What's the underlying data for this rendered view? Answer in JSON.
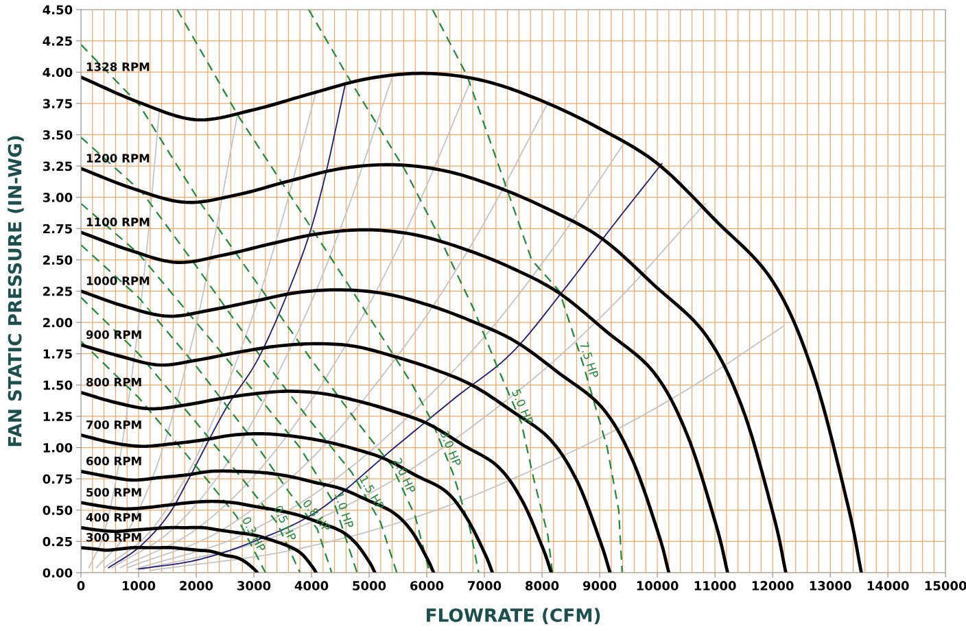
{
  "chart_data": {
    "type": "line",
    "xlabel": "FLOWRATE (CFM)",
    "ylabel": "FAN STATIC PRESSURE (IN-WG)",
    "xlim": [
      0,
      15000
    ],
    "ylim": [
      0,
      4.5
    ],
    "grid": true,
    "legend": false,
    "xticks": [
      0,
      {
        "value": 200,
        "label": null
      },
      {
        "value": 400,
        "label": null
      },
      {
        "value": 600,
        "label": null
      },
      {
        "value": 800,
        "label": null
      },
      1000,
      {
        "value": 1200,
        "label": null
      },
      {
        "value": 1400,
        "label": null
      },
      {
        "value": 1600,
        "label": null
      },
      {
        "value": 1800,
        "label": null
      },
      2000,
      {
        "value": 2200,
        "label": null
      },
      {
        "value": 2400,
        "label": null
      },
      {
        "value": 2600,
        "label": null
      },
      {
        "value": 2800,
        "label": null
      },
      3000,
      {
        "value": 3200,
        "label": null
      },
      {
        "value": 3400,
        "label": null
      },
      {
        "value": 3600,
        "label": null
      },
      {
        "value": 3800,
        "label": null
      },
      4000,
      {
        "value": 4200,
        "label": null
      },
      {
        "value": 4400,
        "label": null
      },
      {
        "value": 4600,
        "label": null
      },
      {
        "value": 4800,
        "label": null
      },
      5000,
      {
        "value": 5200,
        "label": null
      },
      {
        "value": 5400,
        "label": null
      },
      {
        "value": 5600,
        "label": null
      },
      {
        "value": 5800,
        "label": null
      },
      6000,
      {
        "value": 6200,
        "label": null
      },
      {
        "value": 6400,
        "label": null
      },
      {
        "value": 6600,
        "label": null
      },
      {
        "value": 6800,
        "label": null
      },
      7000,
      {
        "value": 7200,
        "label": null
      },
      {
        "value": 7400,
        "label": null
      },
      {
        "value": 7600,
        "label": null
      },
      {
        "value": 7800,
        "label": null
      },
      8000,
      {
        "value": 8200,
        "label": null
      },
      {
        "value": 8400,
        "label": null
      },
      {
        "value": 8600,
        "label": null
      },
      {
        "value": 8800,
        "label": null
      },
      9000,
      {
        "value": 9200,
        "label": null
      },
      {
        "value": 9400,
        "label": null
      },
      {
        "value": 9600,
        "label": null
      },
      {
        "value": 9800,
        "label": null
      },
      10000,
      {
        "value": 10200,
        "label": null
      },
      {
        "value": 10400,
        "label": null
      },
      {
        "value": 10600,
        "label": null
      },
      {
        "value": 10800,
        "label": null
      },
      11000,
      {
        "value": 11200,
        "label": null
      },
      {
        "value": 11400,
        "label": null
      },
      {
        "value": 11600,
        "label": null
      },
      {
        "value": 11800,
        "label": null
      },
      12000,
      {
        "value": 12200,
        "label": null
      },
      {
        "value": 12400,
        "label": null
      },
      {
        "value": 12600,
        "label": null
      },
      {
        "value": 12800,
        "label": null
      },
      13000,
      {
        "value": 13200,
        "label": null
      },
      {
        "value": 13400,
        "label": null
      },
      {
        "value": 13600,
        "label": null
      },
      {
        "value": 13800,
        "label": null
      },
      14000,
      {
        "value": 14200,
        "label": null
      },
      {
        "value": 14400,
        "label": null
      },
      {
        "value": 14600,
        "label": null
      },
      {
        "value": 14800,
        "label": null
      },
      15000
    ],
    "yticks": [
      {
        "value": 0,
        "label": "0.00"
      },
      {
        "value": 0.25,
        "label": "0.25"
      },
      {
        "value": 0.5,
        "label": "0.50"
      },
      {
        "value": 0.75,
        "label": "0.75"
      },
      {
        "value": 1.0,
        "label": "1.00"
      },
      {
        "value": 1.25,
        "label": "1.25"
      },
      {
        "value": 1.5,
        "label": "1.50"
      },
      {
        "value": 1.75,
        "label": "1.75"
      },
      {
        "value": 2.0,
        "label": "2.00"
      },
      {
        "value": 2.25,
        "label": "2.25"
      },
      {
        "value": 2.5,
        "label": "2.50"
      },
      {
        "value": 2.75,
        "label": "2.75"
      },
      {
        "value": 3.0,
        "label": "3.00"
      },
      {
        "value": 3.25,
        "label": "3.25"
      },
      {
        "value": 3.5,
        "label": "3.50"
      },
      {
        "value": 3.75,
        "label": "3.75"
      },
      {
        "value": 4.0,
        "label": "4.00"
      },
      {
        "value": 4.25,
        "label": "4.25"
      },
      {
        "value": 4.5,
        "label": "4.50"
      }
    ],
    "annotations": [
      {
        "text": "0.3 HP",
        "x": 2900,
        "y": 0.27
      },
      {
        "text": "0.5 HP",
        "x": 3440,
        "y": 0.36
      },
      {
        "text": "0.8 HP",
        "x": 4000,
        "y": 0.41
      },
      {
        "text": "1.0 HP",
        "x": 4460,
        "y": 0.47
      },
      {
        "text": "1.5 HP",
        "x": 4950,
        "y": 0.6
      },
      {
        "text": "2.0 HP",
        "x": 5510,
        "y": 0.74
      },
      {
        "text": "3.0 HP",
        "x": 6310,
        "y": 0.96
      },
      {
        "text": "5.0 HP",
        "x": 7560,
        "y": 1.29
      },
      {
        "text": "7.5 HP",
        "x": 8710,
        "y": 1.67
      }
    ],
    "series": [
      {
        "color": "#c4c4c4",
        "line_style": "solid",
        "x": [
          140,
          410,
          680,
          950,
          1160,
          1360
        ],
        "values": [
          0.04,
          0.33,
          0.93,
          1.81,
          2.67,
          3.7
        ]
      },
      {
        "color": "#c4c4c4",
        "line_style": "solid",
        "x": [
          270,
          810,
          1360,
          1900,
          2300,
          2710
        ],
        "values": [
          0.04,
          0.33,
          0.91,
          1.79,
          2.64,
          3.65
        ]
      },
      {
        "color": "#c4c4c4",
        "line_style": "solid",
        "x": [
          410,
          1220,
          2040,
          2850,
          3460,
          4070
        ],
        "values": [
          0.04,
          0.34,
          0.96,
          1.88,
          2.77,
          3.83
        ]
      },
      {
        "color": "#c4c4c4",
        "line_style": "solid",
        "x": [
          540,
          1620,
          2700,
          3780,
          4590,
          5400
        ],
        "values": [
          0.04,
          0.36,
          0.99,
          1.94,
          2.86,
          3.96
        ]
      },
      {
        "color": "#c4c4c4",
        "line_style": "solid",
        "x": [
          680,
          2040,
          3400,
          4750,
          5770,
          6790
        ],
        "values": [
          0.04,
          0.36,
          0.99,
          1.94,
          2.86,
          3.96
        ]
      },
      {
        "color": "#c4c4c4",
        "line_style": "solid",
        "x": [
          810,
          2440,
          4060,
          5680,
          6900,
          8120
        ],
        "values": [
          0.04,
          0.34,
          0.94,
          1.85,
          2.72,
          3.77
        ]
      },
      {
        "color": "#c4c4c4",
        "line_style": "solid",
        "x": [
          950,
          2840,
          4730,
          6620,
          8030,
          9450
        ],
        "values": [
          0.03,
          0.31,
          0.86,
          1.69,
          2.49,
          3.45
        ]
      },
      {
        "color": "#c4c4c4",
        "line_style": "solid",
        "x": [
          1080,
          3250,
          5420,
          7580,
          9210,
          10830
        ],
        "values": [
          0.03,
          0.27,
          0.74,
          1.45,
          2.13,
          2.95
        ]
      },
      {
        "color": "#c4c4c4",
        "line_style": "solid",
        "x": [
          1220,
          3660,
          6100,
          8530,
          10360,
          12190
        ],
        "values": [
          0.02,
          0.18,
          0.49,
          0.97,
          1.42,
          1.97
        ]
      },
      {
        "color": "#1c1c78",
        "line_style": "solid",
        "x": [
          480,
          1000,
          1500,
          1870,
          2500,
          3120,
          3810,
          4200,
          4580
        ],
        "values": [
          0.04,
          0.2,
          0.45,
          0.75,
          1.3,
          1.75,
          2.5,
          3.1,
          3.89
        ]
      },
      {
        "color": "#1c1c78",
        "line_style": "solid",
        "x": [
          1000,
          2000,
          3000,
          4130,
          5440,
          6500,
          7460,
          8360,
          9190,
          10080
        ],
        "values": [
          0.03,
          0.1,
          0.25,
          0.5,
          1.0,
          1.4,
          1.75,
          2.25,
          2.75,
          3.27
        ]
      },
      {
        "color": "#1e8a3a",
        "line_style": "dashed",
        "x": [
          0,
          1000,
          2000,
          2700,
          3200
        ],
        "values": [
          1.85,
          1.4,
          0.85,
          0.45,
          0
        ]
      },
      {
        "color": "#1e8a3a",
        "line_style": "dashed",
        "x": [
          0,
          1000,
          2000,
          2800,
          3400,
          3800
        ],
        "values": [
          2.2,
          1.75,
          1.2,
          0.75,
          0.4,
          0
        ]
      },
      {
        "color": "#1e8a3a",
        "line_style": "dashed",
        "x": [
          0,
          1000,
          2000,
          3000,
          3600,
          4100,
          4350
        ],
        "values": [
          2.62,
          2.2,
          1.65,
          1.05,
          0.65,
          0.35,
          0
        ]
      },
      {
        "color": "#1e8a3a",
        "line_style": "dashed",
        "x": [
          0,
          1000,
          2000,
          3000,
          3800,
          4400,
          4790
        ],
        "values": [
          2.95,
          2.55,
          2.0,
          1.45,
          1.0,
          0.55,
          0
        ]
      },
      {
        "color": "#1e8a3a",
        "line_style": "dashed",
        "x": [
          0,
          1060,
          2000,
          3000,
          4000,
          4700,
          5200,
          5480
        ],
        "values": [
          3.48,
          3.04,
          2.45,
          1.8,
          1.2,
          0.8,
          0.4,
          0
        ]
      },
      {
        "color": "#1e8a3a",
        "line_style": "dashed",
        "x": [
          0,
          1010,
          2080,
          3000,
          4000,
          4800,
          5400,
          5800,
          6050
        ],
        "values": [
          4.22,
          3.74,
          2.95,
          2.35,
          1.7,
          1.2,
          0.85,
          0.45,
          0
        ]
      },
      {
        "color": "#1e8a3a",
        "line_style": "dashed",
        "x": [
          1670,
          2730,
          3750,
          4500,
          5200,
          5740,
          6100,
          6450,
          6750,
          6900
        ],
        "values": [
          4.5,
          3.65,
          2.93,
          2.4,
          1.9,
          1.51,
          1.2,
          0.8,
          0.35,
          0
        ]
      },
      {
        "color": "#1e8a3a",
        "line_style": "dashed",
        "x": [
          3950,
          4700,
          5620,
          6200,
          6810,
          7200,
          7640,
          7850,
          8100,
          8180
        ],
        "values": [
          4.5,
          3.91,
          3.22,
          2.7,
          2.11,
          1.67,
          1.2,
          0.76,
          0.3,
          0
        ]
      },
      {
        "color": "#1e8a3a",
        "line_style": "dashed",
        "x": [
          6100,
          6700,
          7250,
          7820,
          8300,
          8710,
          9130,
          9330,
          9390
        ],
        "values": [
          4.5,
          3.97,
          3.25,
          2.5,
          2.25,
          1.67,
          1.0,
          0.5,
          0
        ]
      },
      {
        "name": "1328 RPM",
        "color": "#000000",
        "line_style": "solid",
        "x": [
          0,
          1000,
          2000,
          3000,
          4000,
          5000,
          6000,
          7000,
          8000,
          9000,
          10000,
          11000,
          12000,
          12700,
          13300,
          13540
        ],
        "values": [
          3.96,
          3.76,
          3.62,
          3.7,
          3.83,
          3.95,
          3.99,
          3.93,
          3.77,
          3.55,
          3.27,
          2.82,
          2.33,
          1.6,
          0.55,
          0
        ]
      },
      {
        "name": "1200 RPM",
        "color": "#000000",
        "line_style": "solid",
        "x": [
          0,
          900,
          1810,
          2710,
          3610,
          4520,
          5420,
          6330,
          7230,
          8130,
          9040,
          9940,
          10840,
          11480,
          12020,
          12230
        ],
        "values": [
          3.23,
          3.07,
          2.96,
          3.02,
          3.13,
          3.23,
          3.26,
          3.21,
          3.08,
          2.9,
          2.67,
          2.3,
          1.9,
          1.31,
          0.45,
          0
        ]
      },
      {
        "name": "1100 RPM",
        "color": "#000000",
        "line_style": "solid",
        "x": [
          0,
          830,
          1660,
          2490,
          3310,
          4140,
          4970,
          5800,
          6630,
          7450,
          8280,
          9110,
          9940,
          10520,
          11020,
          11220
        ],
        "values": [
          2.72,
          2.58,
          2.48,
          2.54,
          2.63,
          2.71,
          2.74,
          2.7,
          2.59,
          2.44,
          2.24,
          1.93,
          1.6,
          1.1,
          0.38,
          0
        ]
      },
      {
        "name": "1000 RPM",
        "color": "#000000",
        "line_style": "solid",
        "x": [
          0,
          750,
          1510,
          2260,
          3010,
          3770,
          4520,
          5270,
          6020,
          6780,
          7530,
          8280,
          9040,
          9560,
          10020,
          10200
        ],
        "values": [
          2.25,
          2.13,
          2.05,
          2.1,
          2.17,
          2.24,
          2.26,
          2.23,
          2.14,
          2.01,
          1.85,
          1.6,
          1.32,
          0.91,
          0.31,
          0
        ]
      },
      {
        "name": "900 RPM",
        "color": "#000000",
        "line_style": "solid",
        "x": [
          0,
          680,
          1360,
          2030,
          2710,
          3390,
          4070,
          4740,
          5420,
          6100,
          6780,
          7450,
          8130,
          8610,
          9010,
          9180
        ],
        "values": [
          1.82,
          1.73,
          1.66,
          1.7,
          1.76,
          1.81,
          1.83,
          1.81,
          1.73,
          1.63,
          1.5,
          1.3,
          1.07,
          0.73,
          0.25,
          0
        ]
      },
      {
        "name": "800 RPM",
        "color": "#000000",
        "line_style": "solid",
        "x": [
          0,
          600,
          1200,
          1810,
          2410,
          3010,
          3610,
          4220,
          4820,
          5420,
          6020,
          6630,
          7230,
          7650,
          8010,
          8160
        ],
        "values": [
          1.44,
          1.36,
          1.31,
          1.34,
          1.39,
          1.43,
          1.45,
          1.43,
          1.37,
          1.29,
          1.19,
          1.02,
          0.85,
          0.58,
          0.2,
          0
        ]
      },
      {
        "name": "700 RPM",
        "color": "#000000",
        "line_style": "solid",
        "x": [
          0,
          530,
          1050,
          1580,
          2110,
          2640,
          3160,
          3690,
          4220,
          4740,
          5270,
          5800,
          6330,
          6690,
          7010,
          7140
        ],
        "values": [
          1.1,
          1.04,
          1.01,
          1.03,
          1.06,
          1.1,
          1.11,
          1.09,
          1.05,
          0.99,
          0.91,
          0.78,
          0.65,
          0.44,
          0.15,
          0
        ]
      },
      {
        "name": "600 RPM",
        "color": "#000000",
        "line_style": "solid",
        "x": [
          0,
          450,
          900,
          1360,
          1810,
          2260,
          2710,
          3160,
          3610,
          4070,
          4520,
          4970,
          5420,
          5740,
          6010,
          6120
        ],
        "values": [
          0.81,
          0.77,
          0.74,
          0.76,
          0.78,
          0.81,
          0.81,
          0.8,
          0.77,
          0.72,
          0.67,
          0.58,
          0.48,
          0.33,
          0.11,
          0
        ]
      },
      {
        "name": "500 RPM",
        "color": "#000000",
        "line_style": "solid",
        "x": [
          0,
          380,
          750,
          1130,
          1510,
          1880,
          2260,
          2640,
          3010,
          3390,
          3770,
          4140,
          4520,
          4780,
          5010,
          5100
        ],
        "values": [
          0.56,
          0.53,
          0.51,
          0.52,
          0.54,
          0.56,
          0.57,
          0.56,
          0.53,
          0.5,
          0.46,
          0.4,
          0.33,
          0.23,
          0.08,
          0
        ]
      },
      {
        "name": "400 RPM",
        "color": "#000000",
        "line_style": "solid",
        "x": [
          0,
          300,
          600,
          900,
          1200,
          1510,
          1810,
          2110,
          2410,
          2710,
          3010,
          3310,
          3610,
          3830,
          4010,
          4080
        ],
        "values": [
          0.36,
          0.34,
          0.33,
          0.34,
          0.35,
          0.36,
          0.36,
          0.36,
          0.34,
          0.32,
          0.3,
          0.26,
          0.21,
          0.15,
          0.05,
          0
        ]
      },
      {
        "name": "300 RPM",
        "color": "#000000",
        "line_style": "solid",
        "x": [
          0,
          230,
          450,
          680,
          900,
          1130,
          1360,
          1580,
          1810,
          2030,
          2260,
          2490,
          2710,
          2870,
          3000,
          3060
        ],
        "values": [
          0.2,
          0.19,
          0.18,
          0.19,
          0.2,
          0.2,
          0.2,
          0.2,
          0.19,
          0.18,
          0.17,
          0.14,
          0.12,
          0.08,
          0.03,
          0
        ]
      }
    ]
  }
}
